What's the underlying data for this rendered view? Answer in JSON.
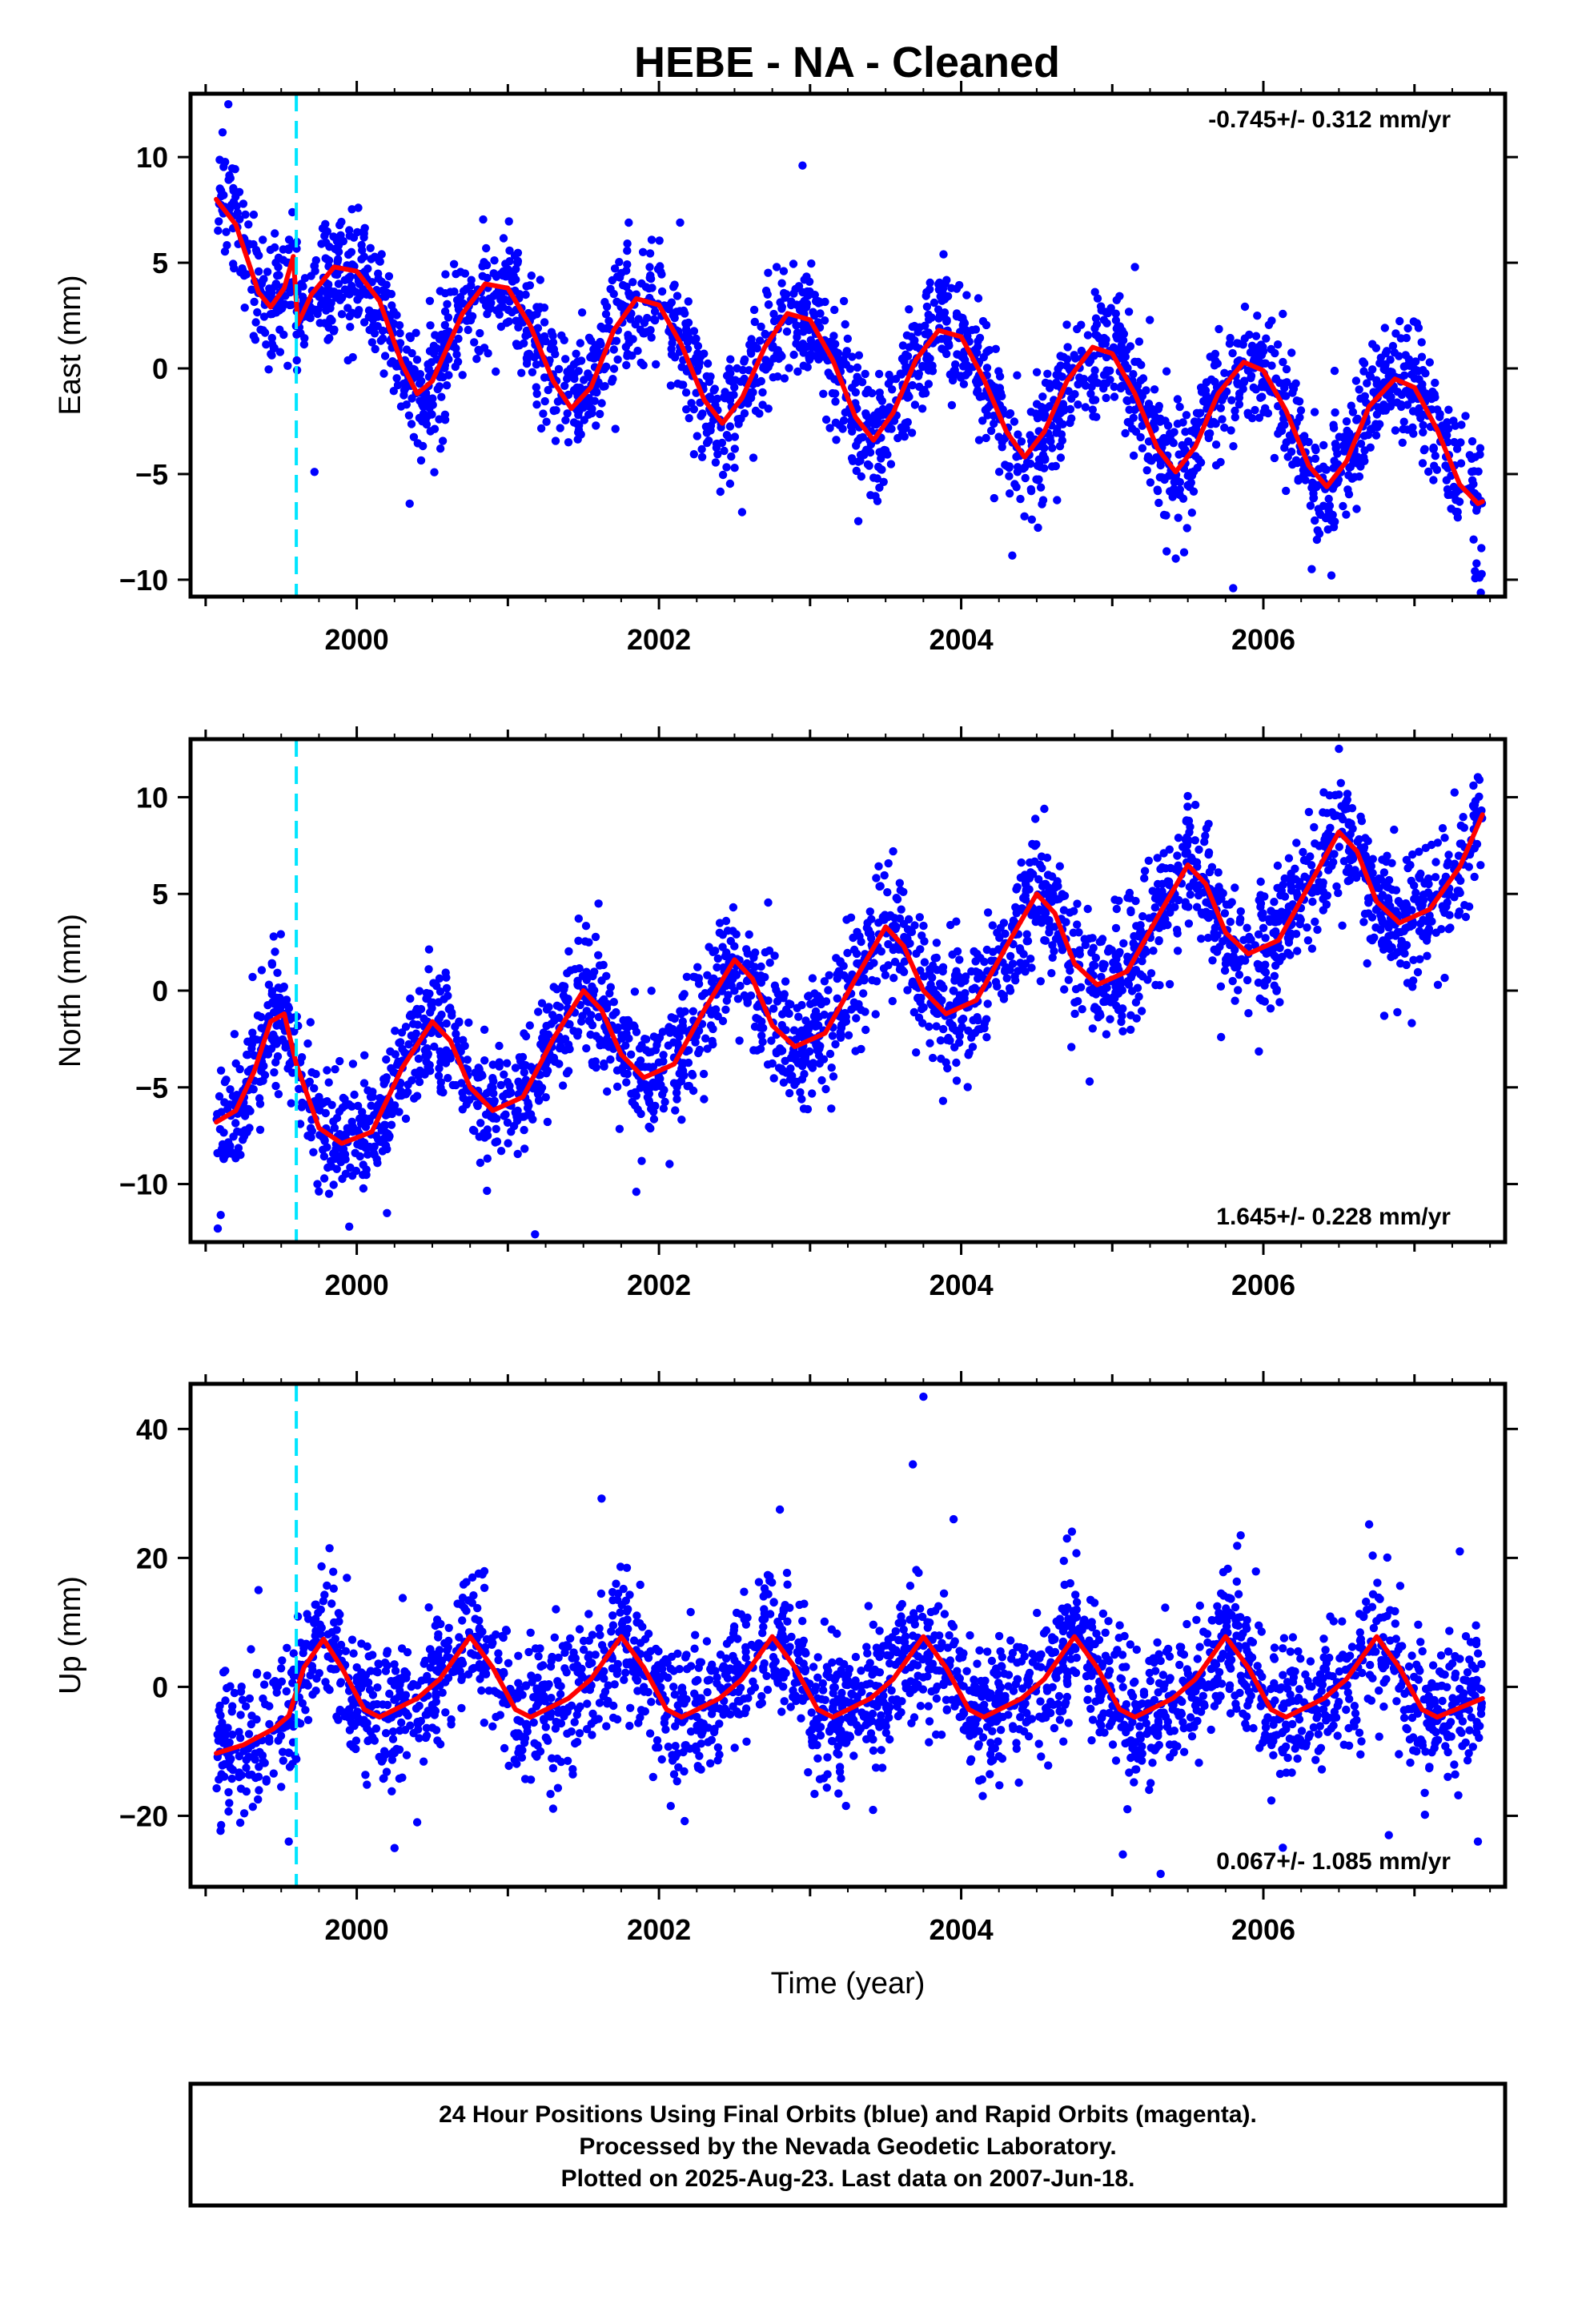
{
  "figure": {
    "title": "HEBE  - NA - Cleaned",
    "colors": {
      "final_orbits": "#0000ff",
      "model_fit": "#ff0000",
      "equipment_change": "#00e5ff",
      "frame": "#000000"
    },
    "footer": {
      "line1": "24 Hour Positions Using Final Orbits (blue) and Rapid Orbits (magenta).",
      "line2": "Processed by the Nevada Geodetic Laboratory.",
      "line3": "Plotted on 2025-Aug-23. Last data on 2007-Jun-18."
    }
  },
  "chart_data": [
    {
      "type": "scatter",
      "component": "east",
      "xlabel": "",
      "ylabel": "East (mm)",
      "xlim": [
        1998.9,
        2007.6
      ],
      "ylim": [
        -10.8,
        13
      ],
      "x_ticks": [
        2000,
        2002,
        2004,
        2006
      ],
      "y_ticks": [
        -10,
        -5,
        0,
        5,
        10
      ],
      "rate_text": "-0.745+/- 0.312 mm/yr",
      "rate_position": "top-right",
      "rate_mm_per_yr": -0.745,
      "rate_sigma": 0.312,
      "equipment_change_epoch": 1999.6,
      "fit_anchors": [
        [
          1999.07,
          8.0
        ],
        [
          1999.2,
          6.8
        ],
        [
          1999.35,
          3.6
        ],
        [
          1999.43,
          2.9
        ],
        [
          1999.52,
          3.8
        ],
        [
          1999.58,
          5.3
        ],
        [
          1999.61,
          2.1
        ],
        [
          1999.7,
          3.5
        ],
        [
          1999.85,
          4.8
        ],
        [
          2000.0,
          4.6
        ],
        [
          2000.15,
          3.2
        ],
        [
          2000.3,
          0.2
        ],
        [
          2000.4,
          -1.2
        ],
        [
          2000.5,
          -0.6
        ],
        [
          2000.7,
          2.6
        ],
        [
          2000.85,
          4.0
        ],
        [
          2001.0,
          3.8
        ],
        [
          2001.15,
          2.0
        ],
        [
          2001.3,
          -0.6
        ],
        [
          2001.42,
          -1.9
        ],
        [
          2001.55,
          -0.9
        ],
        [
          2001.7,
          1.8
        ],
        [
          2001.85,
          3.3
        ],
        [
          2002.0,
          3.0
        ],
        [
          2002.15,
          1.1
        ],
        [
          2002.3,
          -1.5
        ],
        [
          2002.42,
          -2.6
        ],
        [
          2002.55,
          -1.4
        ],
        [
          2002.7,
          1.0
        ],
        [
          2002.85,
          2.6
        ],
        [
          2003.0,
          2.3
        ],
        [
          2003.15,
          0.4
        ],
        [
          2003.3,
          -2.3
        ],
        [
          2003.42,
          -3.4
        ],
        [
          2003.55,
          -2.1
        ],
        [
          2003.7,
          0.4
        ],
        [
          2003.85,
          1.8
        ],
        [
          2004.0,
          1.5
        ],
        [
          2004.15,
          -0.5
        ],
        [
          2004.3,
          -3.0
        ],
        [
          2004.42,
          -4.2
        ],
        [
          2004.55,
          -3.0
        ],
        [
          2004.7,
          -0.6
        ],
        [
          2004.87,
          1.0
        ],
        [
          2005.0,
          0.7
        ],
        [
          2005.15,
          -1.2
        ],
        [
          2005.3,
          -3.8
        ],
        [
          2005.42,
          -4.9
        ],
        [
          2005.55,
          -3.7
        ],
        [
          2005.7,
          -1.2
        ],
        [
          2005.87,
          0.3
        ],
        [
          2006.0,
          -0.1
        ],
        [
          2006.15,
          -2.0
        ],
        [
          2006.3,
          -4.6
        ],
        [
          2006.42,
          -5.6
        ],
        [
          2006.55,
          -4.4
        ],
        [
          2006.7,
          -1.8
        ],
        [
          2006.87,
          -0.5
        ],
        [
          2007.0,
          -0.9
        ],
        [
          2007.15,
          -2.9
        ],
        [
          2007.3,
          -5.5
        ],
        [
          2007.42,
          -6.4
        ],
        [
          2007.45,
          -6.3
        ]
      ],
      "scatter_sigma_mm": 1.45,
      "seed": 11,
      "n_points": 2600,
      "outliers": [
        [
          1999.15,
          12.5
        ],
        [
          1999.72,
          -4.9
        ],
        [
          2000.35,
          -6.4
        ],
        [
          2001.8,
          6.9
        ],
        [
          2002.55,
          -6.8
        ],
        [
          2002.95,
          9.6
        ],
        [
          2003.4,
          -6.0
        ],
        [
          2005.15,
          4.8
        ],
        [
          2005.42,
          -9.0
        ],
        [
          2005.8,
          -10.4
        ],
        [
          2006.32,
          -9.5
        ],
        [
          2006.45,
          -9.8
        ],
        [
          2007.4,
          -9.6
        ],
        [
          2007.43,
          -9.9
        ]
      ]
    },
    {
      "type": "scatter",
      "component": "north",
      "xlabel": "",
      "ylabel": "North (mm)",
      "xlim": [
        1998.9,
        2007.6
      ],
      "ylim": [
        -13,
        13
      ],
      "x_ticks": [
        2000,
        2002,
        2004,
        2006
      ],
      "y_ticks": [
        -10,
        -5,
        0,
        5,
        10
      ],
      "rate_text": "1.645+/- 0.228 mm/yr",
      "rate_position": "bottom-right",
      "rate_mm_per_yr": 1.645,
      "rate_sigma": 0.228,
      "equipment_change_epoch": 1999.6,
      "fit_anchors": [
        [
          1999.07,
          -6.8
        ],
        [
          1999.2,
          -6.2
        ],
        [
          1999.32,
          -4.2
        ],
        [
          1999.43,
          -1.6
        ],
        [
          1999.52,
          -1.2
        ],
        [
          1999.6,
          -3.8
        ],
        [
          1999.75,
          -7.1
        ],
        [
          1999.9,
          -7.9
        ],
        [
          2000.1,
          -7.3
        ],
        [
          2000.3,
          -4.0
        ],
        [
          2000.5,
          -1.6
        ],
        [
          2000.62,
          -2.6
        ],
        [
          2000.75,
          -5.0
        ],
        [
          2000.9,
          -6.2
        ],
        [
          2001.1,
          -5.5
        ],
        [
          2001.3,
          -2.5
        ],
        [
          2001.5,
          0.0
        ],
        [
          2001.62,
          -1.0
        ],
        [
          2001.75,
          -3.3
        ],
        [
          2001.9,
          -4.5
        ],
        [
          2002.1,
          -3.8
        ],
        [
          2002.3,
          -1.0
        ],
        [
          2002.5,
          1.6
        ],
        [
          2002.62,
          0.6
        ],
        [
          2002.75,
          -1.8
        ],
        [
          2002.9,
          -2.9
        ],
        [
          2003.1,
          -2.2
        ],
        [
          2003.3,
          0.6
        ],
        [
          2003.5,
          3.3
        ],
        [
          2003.62,
          2.3
        ],
        [
          2003.75,
          0.0
        ],
        [
          2003.9,
          -1.2
        ],
        [
          2004.1,
          -0.5
        ],
        [
          2004.3,
          2.3
        ],
        [
          2004.5,
          5.0
        ],
        [
          2004.62,
          4.0
        ],
        [
          2004.75,
          1.4
        ],
        [
          2004.9,
          0.3
        ],
        [
          2005.1,
          1.0
        ],
        [
          2005.3,
          3.8
        ],
        [
          2005.5,
          6.5
        ],
        [
          2005.62,
          5.5
        ],
        [
          2005.75,
          3.0
        ],
        [
          2005.9,
          1.9
        ],
        [
          2006.1,
          2.6
        ],
        [
          2006.3,
          5.4
        ],
        [
          2006.5,
          8.2
        ],
        [
          2006.62,
          7.2
        ],
        [
          2006.75,
          4.6
        ],
        [
          2006.9,
          3.5
        ],
        [
          2007.1,
          4.2
        ],
        [
          2007.3,
          6.4
        ],
        [
          2007.45,
          9.1
        ]
      ],
      "scatter_sigma_mm": 1.55,
      "seed": 23,
      "n_points": 2600,
      "outliers": [
        [
          1999.08,
          -12.3
        ],
        [
          1999.1,
          -11.6
        ],
        [
          1999.45,
          2.8
        ],
        [
          1999.95,
          -12.2
        ],
        [
          2000.2,
          -11.5
        ],
        [
          2001.18,
          -12.6
        ],
        [
          2001.6,
          4.5
        ],
        [
          2001.85,
          -10.4
        ],
        [
          2003.55,
          7.2
        ],
        [
          2003.88,
          -5.7
        ],
        [
          2004.55,
          9.4
        ],
        [
          2004.85,
          -4.7
        ],
        [
          2005.55,
          9.6
        ],
        [
          2005.72,
          -2.4
        ],
        [
          2006.5,
          12.5
        ],
        [
          2006.8,
          -1.3
        ],
        [
          2007.43,
          10.9
        ]
      ]
    },
    {
      "type": "scatter",
      "component": "up",
      "xlabel": "Time (year)",
      "ylabel": "Up (mm)",
      "xlim": [
        1998.9,
        2007.6
      ],
      "ylim": [
        -31,
        47
      ],
      "x_ticks": [
        2000,
        2002,
        2004,
        2006
      ],
      "y_ticks": [
        -20,
        0,
        20,
        40
      ],
      "rate_text": "0.067+/- 1.085 mm/yr",
      "rate_position": "bottom-right",
      "rate_mm_per_yr": 0.067,
      "rate_sigma": 1.085,
      "equipment_change_epoch": 1999.6,
      "fit_anchors": [
        [
          1999.07,
          -10.3
        ],
        [
          1999.25,
          -9.0
        ],
        [
          1999.45,
          -6.5
        ],
        [
          1999.55,
          -4.5
        ],
        [
          1999.65,
          3.0
        ],
        [
          1999.78,
          7.4
        ],
        [
          1999.9,
          3.0
        ],
        [
          2000.05,
          -3.5
        ],
        [
          2000.15,
          -4.7
        ],
        [
          2000.4,
          -1.8
        ],
        [
          2000.55,
          1.2
        ],
        [
          2000.75,
          7.8
        ],
        [
          2000.9,
          3.0
        ],
        [
          2001.05,
          -3.5
        ],
        [
          2001.15,
          -4.7
        ],
        [
          2001.4,
          -1.8
        ],
        [
          2001.55,
          1.2
        ],
        [
          2001.75,
          7.8
        ],
        [
          2001.9,
          3.0
        ],
        [
          2002.05,
          -3.5
        ],
        [
          2002.15,
          -4.7
        ],
        [
          2002.4,
          -1.8
        ],
        [
          2002.55,
          1.2
        ],
        [
          2002.75,
          7.8
        ],
        [
          2002.9,
          3.0
        ],
        [
          2003.05,
          -3.5
        ],
        [
          2003.15,
          -4.7
        ],
        [
          2003.4,
          -1.8
        ],
        [
          2003.55,
          1.2
        ],
        [
          2003.75,
          7.8
        ],
        [
          2003.9,
          3.0
        ],
        [
          2004.05,
          -3.5
        ],
        [
          2004.15,
          -4.7
        ],
        [
          2004.4,
          -1.8
        ],
        [
          2004.55,
          1.2
        ],
        [
          2004.75,
          7.8
        ],
        [
          2004.9,
          3.0
        ],
        [
          2005.05,
          -3.5
        ],
        [
          2005.15,
          -4.7
        ],
        [
          2005.4,
          -1.8
        ],
        [
          2005.55,
          1.2
        ],
        [
          2005.75,
          7.8
        ],
        [
          2005.9,
          3.0
        ],
        [
          2006.05,
          -3.5
        ],
        [
          2006.15,
          -4.7
        ],
        [
          2006.4,
          -1.8
        ],
        [
          2006.55,
          1.2
        ],
        [
          2006.75,
          7.8
        ],
        [
          2006.9,
          3.0
        ],
        [
          2007.05,
          -3.5
        ],
        [
          2007.15,
          -4.7
        ],
        [
          2007.45,
          -1.8
        ]
      ],
      "scatter_sigma_mm": 5.5,
      "seed": 37,
      "n_points": 2600,
      "outliers": [
        [
          1999.35,
          15.0
        ],
        [
          1999.55,
          -24.0
        ],
        [
          1999.82,
          21.5
        ],
        [
          2000.25,
          -25.0
        ],
        [
          2000.4,
          -21.0
        ],
        [
          2001.62,
          29.2
        ],
        [
          2002.8,
          27.5
        ],
        [
          2003.68,
          34.5
        ],
        [
          2003.75,
          45.0
        ],
        [
          2003.95,
          26.0
        ],
        [
          2004.7,
          23.0
        ],
        [
          2005.07,
          -26.0
        ],
        [
          2005.32,
          -29.0
        ],
        [
          2005.85,
          23.5
        ],
        [
          2006.7,
          25.2
        ],
        [
          2006.83,
          -23.0
        ],
        [
          2007.3,
          21.0
        ],
        [
          2007.42,
          -24.0
        ]
      ]
    }
  ]
}
